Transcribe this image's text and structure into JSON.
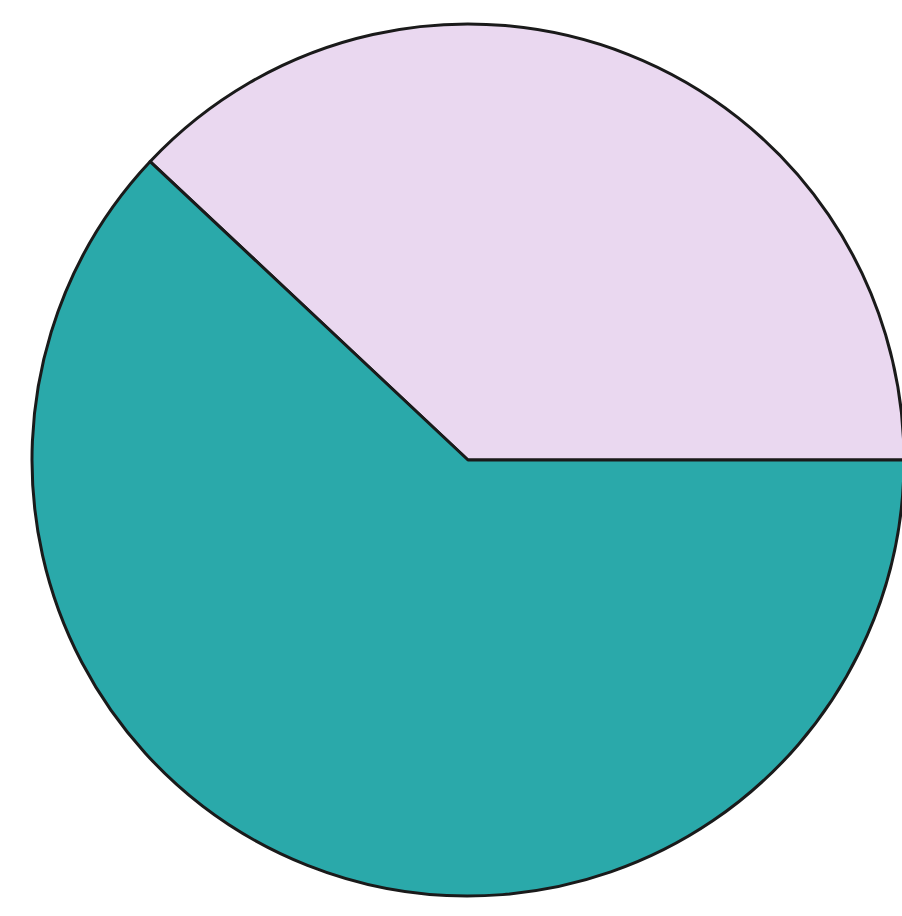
{
  "chart_data": {
    "type": "pie",
    "categories": [
      null,
      null
    ],
    "values": [
      38,
      62
    ],
    "colors": [
      "#ead8f0",
      "#2aa9aa"
    ]
  }
}
